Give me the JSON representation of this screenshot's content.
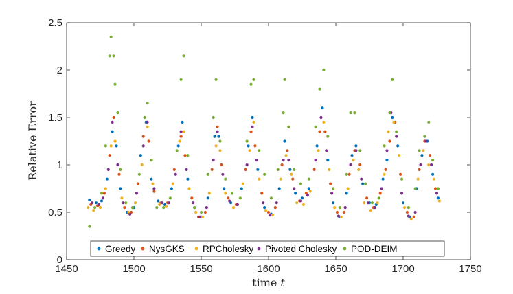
{
  "chart_data": {
    "type": "scatter",
    "title": "",
    "xlabel_text": "time ",
    "xlabel_var": "t",
    "ylabel": "Relative Error",
    "xlim": [
      1450,
      1750
    ],
    "ylim": [
      0,
      2.5
    ],
    "xticks": [
      1450,
      1500,
      1550,
      1600,
      1650,
      1700,
      1750
    ],
    "yticks": [
      0,
      0.5,
      1,
      1.5,
      2,
      2.5
    ],
    "ytick_labels": [
      "0",
      "0.5",
      "1",
      "1.5",
      "2",
      "2.5"
    ],
    "grid": false,
    "legend_position": "bottom-center",
    "series": [
      {
        "name": "Greedy",
        "color": "#0072BD",
        "points": [
          [
            1467,
            0.63
          ],
          [
            1472,
            0.6
          ],
          [
            1476,
            0.62
          ],
          [
            1480,
            0.85
          ],
          [
            1484,
            1.35
          ],
          [
            1487,
            1.2
          ],
          [
            1490,
            0.75
          ],
          [
            1495,
            0.5
          ],
          [
            1500,
            0.55
          ],
          [
            1505,
            1.1
          ],
          [
            1509,
            1.45
          ],
          [
            1513,
            0.85
          ],
          [
            1518,
            0.62
          ],
          [
            1523,
            0.58
          ],
          [
            1528,
            0.75
          ],
          [
            1533,
            1.2
          ],
          [
            1536,
            1.45
          ],
          [
            1540,
            0.85
          ],
          [
            1545,
            0.55
          ],
          [
            1550,
            0.45
          ],
          [
            1555,
            0.65
          ],
          [
            1560,
            1.3
          ],
          [
            1563,
            1.3
          ],
          [
            1567,
            0.75
          ],
          [
            1572,
            0.6
          ],
          [
            1580,
            0.75
          ],
          [
            1585,
            1.2
          ],
          [
            1588,
            1.5
          ],
          [
            1592,
            0.95
          ],
          [
            1597,
            0.55
          ],
          [
            1602,
            0.48
          ],
          [
            1608,
            0.75
          ],
          [
            1612,
            1.25
          ],
          [
            1616,
            0.95
          ],
          [
            1620,
            0.7
          ],
          [
            1625,
            0.65
          ],
          [
            1630,
            0.75
          ],
          [
            1636,
            1.2
          ],
          [
            1640,
            1.6
          ],
          [
            1644,
            1.05
          ],
          [
            1648,
            0.6
          ],
          [
            1653,
            0.45
          ],
          [
            1658,
            0.7
          ],
          [
            1662,
            1.1
          ],
          [
            1665,
            1.2
          ],
          [
            1670,
            0.8
          ],
          [
            1675,
            0.6
          ],
          [
            1680,
            0.58
          ],
          [
            1685,
            0.85
          ],
          [
            1688,
            1.05
          ],
          [
            1692,
            1.5
          ],
          [
            1696,
            1.2
          ],
          [
            1700,
            0.6
          ],
          [
            1705,
            0.45
          ],
          [
            1710,
            0.75
          ],
          [
            1714,
            1.1
          ],
          [
            1718,
            1.25
          ],
          [
            1722,
            0.9
          ],
          [
            1726,
            0.65
          ]
        ]
      },
      {
        "name": "NysGKS",
        "color": "#D95319",
        "points": [
          [
            1468,
            0.58
          ],
          [
            1473,
            0.57
          ],
          [
            1478,
            0.7
          ],
          [
            1482,
            1.1
          ],
          [
            1485,
            1.5
          ],
          [
            1489,
            0.9
          ],
          [
            1493,
            0.55
          ],
          [
            1498,
            0.5
          ],
          [
            1503,
            0.8
          ],
          [
            1507,
            1.3
          ],
          [
            1511,
            1.25
          ],
          [
            1515,
            0.72
          ],
          [
            1520,
            0.6
          ],
          [
            1525,
            0.6
          ],
          [
            1530,
            0.95
          ],
          [
            1535,
            1.3
          ],
          [
            1538,
            1.1
          ],
          [
            1543,
            0.65
          ],
          [
            1548,
            0.45
          ],
          [
            1553,
            0.5
          ],
          [
            1558,
            0.95
          ],
          [
            1562,
            1.4
          ],
          [
            1565,
            1.0
          ],
          [
            1570,
            0.65
          ],
          [
            1576,
            0.58
          ],
          [
            1583,
            0.95
          ],
          [
            1587,
            1.35
          ],
          [
            1590,
            1.2
          ],
          [
            1595,
            0.7
          ],
          [
            1600,
            0.5
          ],
          [
            1605,
            0.55
          ],
          [
            1610,
            1.0
          ],
          [
            1614,
            1.15
          ],
          [
            1618,
            0.85
          ],
          [
            1623,
            0.62
          ],
          [
            1628,
            0.7
          ],
          [
            1634,
            0.95
          ],
          [
            1638,
            1.35
          ],
          [
            1642,
            1.35
          ],
          [
            1646,
            0.8
          ],
          [
            1651,
            0.5
          ],
          [
            1656,
            0.5
          ],
          [
            1660,
            0.9
          ],
          [
            1664,
            1.15
          ],
          [
            1668,
            1.0
          ],
          [
            1673,
            0.65
          ],
          [
            1678,
            0.55
          ],
          [
            1683,
            0.7
          ],
          [
            1687,
            0.95
          ],
          [
            1690,
            1.25
          ],
          [
            1694,
            1.45
          ],
          [
            1698,
            0.9
          ],
          [
            1703,
            0.5
          ],
          [
            1708,
            0.45
          ],
          [
            1712,
            0.95
          ],
          [
            1716,
            1.25
          ],
          [
            1720,
            1.1
          ],
          [
            1724,
            0.75
          ]
        ]
      },
      {
        "name": "RPCholesky",
        "color": "#EDB120",
        "points": [
          [
            1466,
            0.55
          ],
          [
            1470,
            0.52
          ],
          [
            1475,
            0.55
          ],
          [
            1479,
            0.75
          ],
          [
            1483,
            1.2
          ],
          [
            1486,
            1.25
          ],
          [
            1491,
            0.65
          ],
          [
            1496,
            0.5
          ],
          [
            1501,
            0.6
          ],
          [
            1506,
            1.0
          ],
          [
            1510,
            1.4
          ],
          [
            1514,
            0.8
          ],
          [
            1519,
            0.58
          ],
          [
            1524,
            0.56
          ],
          [
            1529,
            0.8
          ],
          [
            1534,
            1.25
          ],
          [
            1537,
            1.35
          ],
          [
            1541,
            0.75
          ],
          [
            1546,
            0.5
          ],
          [
            1551,
            0.45
          ],
          [
            1556,
            0.7
          ],
          [
            1561,
            1.2
          ],
          [
            1564,
            1.15
          ],
          [
            1568,
            0.7
          ],
          [
            1574,
            0.55
          ],
          [
            1581,
            0.8
          ],
          [
            1586,
            1.15
          ],
          [
            1589,
            1.45
          ],
          [
            1593,
            0.85
          ],
          [
            1598,
            0.52
          ],
          [
            1603,
            0.47
          ],
          [
            1609,
            0.85
          ],
          [
            1613,
            1.1
          ],
          [
            1617,
            0.9
          ],
          [
            1621,
            0.6
          ],
          [
            1626,
            0.58
          ],
          [
            1631,
            0.72
          ],
          [
            1637,
            1.15
          ],
          [
            1641,
            1.45
          ],
          [
            1645,
            0.95
          ],
          [
            1649,
            0.55
          ],
          [
            1654,
            0.45
          ],
          [
            1659,
            0.75
          ],
          [
            1663,
            1.05
          ],
          [
            1667,
            0.95
          ],
          [
            1671,
            0.6
          ],
          [
            1676,
            0.52
          ],
          [
            1681,
            0.6
          ],
          [
            1686,
            0.9
          ],
          [
            1689,
            1.35
          ],
          [
            1693,
            1.45
          ],
          [
            1697,
            1.1
          ],
          [
            1701,
            0.55
          ],
          [
            1706,
            0.43
          ],
          [
            1711,
            0.85
          ],
          [
            1715,
            1.15
          ],
          [
            1719,
            1.0
          ],
          [
            1723,
            0.85
          ],
          [
            1727,
            0.62
          ]
        ]
      },
      {
        "name": "Pivoted Cholesky",
        "color": "#7E2F8E",
        "points": [
          [
            1469,
            0.6
          ],
          [
            1474,
            0.58
          ],
          [
            1477,
            0.65
          ],
          [
            1481,
            0.95
          ],
          [
            1484,
            1.45
          ],
          [
            1488,
            1.0
          ],
          [
            1492,
            0.6
          ],
          [
            1497,
            0.48
          ],
          [
            1502,
            0.7
          ],
          [
            1507,
            1.2
          ],
          [
            1510,
            1.45
          ],
          [
            1515,
            0.75
          ],
          [
            1521,
            0.6
          ],
          [
            1526,
            0.6
          ],
          [
            1531,
            0.9
          ],
          [
            1535,
            1.35
          ],
          [
            1539,
            0.95
          ],
          [
            1544,
            0.6
          ],
          [
            1549,
            0.45
          ],
          [
            1554,
            0.55
          ],
          [
            1559,
            1.05
          ],
          [
            1562,
            1.35
          ],
          [
            1566,
            0.9
          ],
          [
            1571,
            0.62
          ],
          [
            1577,
            0.58
          ],
          [
            1584,
            1.0
          ],
          [
            1588,
            1.4
          ],
          [
            1591,
            1.05
          ],
          [
            1596,
            0.6
          ],
          [
            1601,
            0.47
          ],
          [
            1606,
            0.6
          ],
          [
            1611,
            1.05
          ],
          [
            1615,
            1.05
          ],
          [
            1619,
            0.75
          ],
          [
            1624,
            0.62
          ],
          [
            1629,
            0.68
          ],
          [
            1635,
            1.05
          ],
          [
            1639,
            1.5
          ],
          [
            1643,
            1.15
          ],
          [
            1647,
            0.7
          ],
          [
            1652,
            0.46
          ],
          [
            1657,
            0.55
          ],
          [
            1661,
            1.0
          ],
          [
            1665,
            1.15
          ],
          [
            1669,
            0.85
          ],
          [
            1674,
            0.6
          ],
          [
            1679,
            0.55
          ],
          [
            1684,
            0.75
          ],
          [
            1688,
            1.15
          ],
          [
            1691,
            1.55
          ],
          [
            1695,
            1.3
          ],
          [
            1699,
            0.7
          ],
          [
            1704,
            0.46
          ],
          [
            1709,
            0.5
          ],
          [
            1713,
            1.0
          ],
          [
            1717,
            1.25
          ],
          [
            1721,
            1.0
          ],
          [
            1725,
            0.7
          ]
        ]
      },
      {
        "name": "POD-DEIM",
        "color": "#77AC30",
        "points": [
          [
            1467,
            0.35
          ],
          [
            1471,
            0.55
          ],
          [
            1476,
            0.7
          ],
          [
            1479,
            1.2
          ],
          [
            1482,
            2.15
          ],
          [
            1483,
            2.35
          ],
          [
            1485,
            2.15
          ],
          [
            1486,
            1.85
          ],
          [
            1488,
            1.55
          ],
          [
            1490,
            0.95
          ],
          [
            1494,
            0.6
          ],
          [
            1499,
            0.55
          ],
          [
            1504,
            0.9
          ],
          [
            1508,
            1.5
          ],
          [
            1510,
            1.65
          ],
          [
            1513,
            1.05
          ],
          [
            1517,
            0.55
          ],
          [
            1522,
            0.55
          ],
          [
            1527,
            0.65
          ],
          [
            1532,
            1.15
          ],
          [
            1535,
            1.9
          ],
          [
            1537,
            2.15
          ],
          [
            1540,
            1.1
          ],
          [
            1545,
            0.55
          ],
          [
            1550,
            0.5
          ],
          [
            1555,
            0.9
          ],
          [
            1559,
            1.5
          ],
          [
            1561,
            1.9
          ],
          [
            1564,
            1.25
          ],
          [
            1568,
            0.85
          ],
          [
            1573,
            0.7
          ],
          [
            1579,
            0.65
          ],
          [
            1584,
            1.25
          ],
          [
            1587,
            1.85
          ],
          [
            1589,
            1.9
          ],
          [
            1593,
            1.15
          ],
          [
            1597,
            0.9
          ],
          [
            1602,
            0.65
          ],
          [
            1607,
            0.95
          ],
          [
            1611,
            1.55
          ],
          [
            1612,
            1.9
          ],
          [
            1615,
            1.4
          ],
          [
            1619,
            0.95
          ],
          [
            1624,
            0.8
          ],
          [
            1630,
            0.85
          ],
          [
            1635,
            1.4
          ],
          [
            1638,
            1.8
          ],
          [
            1641,
            2.0
          ],
          [
            1644,
            1.3
          ],
          [
            1648,
            0.75
          ],
          [
            1653,
            0.55
          ],
          [
            1658,
            0.9
          ],
          [
            1661,
            1.55
          ],
          [
            1664,
            1.55
          ],
          [
            1668,
            1.15
          ],
          [
            1672,
            0.8
          ],
          [
            1677,
            0.6
          ],
          [
            1682,
            0.65
          ],
          [
            1686,
            1.2
          ],
          [
            1690,
            1.55
          ],
          [
            1692,
            1.9
          ],
          [
            1695,
            1.35
          ],
          [
            1699,
            0.85
          ],
          [
            1704,
            0.55
          ],
          [
            1709,
            0.75
          ],
          [
            1712,
            1.15
          ],
          [
            1716,
            1.3
          ],
          [
            1719,
            1.45
          ],
          [
            1722,
            1.05
          ],
          [
            1726,
            0.75
          ]
        ]
      }
    ]
  }
}
